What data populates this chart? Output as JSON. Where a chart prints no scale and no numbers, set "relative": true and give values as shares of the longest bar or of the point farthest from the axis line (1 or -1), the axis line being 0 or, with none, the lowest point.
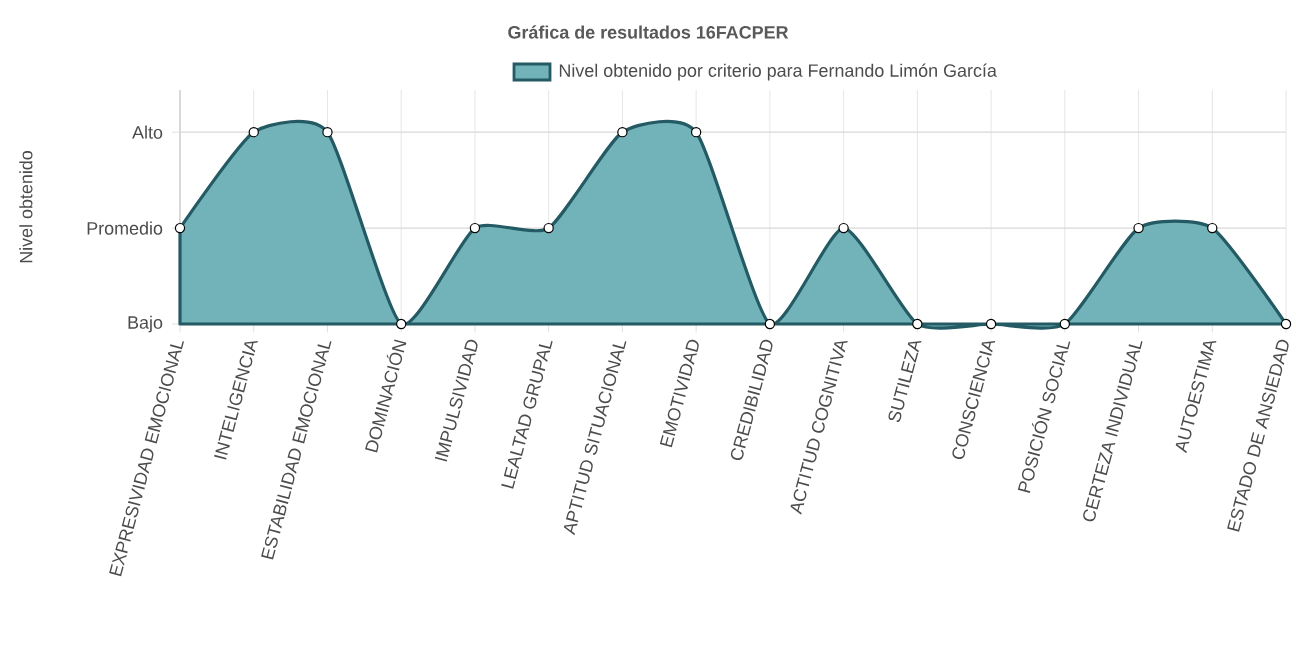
{
  "chart_data": {
    "type": "area",
    "title": "Gráfica de resultados 16FACPER",
    "ylabel": "Nivel obtenido",
    "relative": true,
    "categories": [
      "EXPRESIVIDAD EMOCIONAL",
      "INTELIGENCIA",
      "ESTABILIDAD EMOCIONAL",
      "DOMINACIÓN",
      "IMPULSIVIDAD",
      "LEALTAD GRUPAL",
      "APTITUD SITUACIONAL",
      "EMOTIVIDAD",
      "CREDIBILIDAD",
      "ACTITUD COGNITIVA",
      "SUTILEZA",
      "CONSCIENCIA",
      "POSICIÓN SOCIAL",
      "CERTEZA INDIVIDUAL",
      "AUTOESTIMA",
      "ESTADO DE ANSIEDAD"
    ],
    "series": [
      {
        "name": "Nivel obtenido por criterio para Fernando Limón García",
        "color": "#72b3b9",
        "values": [
          0.5,
          1,
          1,
          0,
          0.5,
          0.5,
          1,
          1,
          0,
          0.5,
          0,
          0,
          0,
          0.5,
          0.5,
          0
        ]
      }
    ],
    "ref_lines": [
      {
        "axis": "y",
        "value": 0,
        "label": "Bajo",
        "color": "#d9d9d9"
      },
      {
        "axis": "y",
        "value": 0.5,
        "label": "Promedio",
        "color": "#d9d9d9"
      },
      {
        "axis": "y",
        "value": 1,
        "label": "Alto",
        "color": "#d9d9d9"
      }
    ],
    "grid": "x",
    "legend": "top",
    "marker": "circle",
    "line_style": "solid"
  }
}
